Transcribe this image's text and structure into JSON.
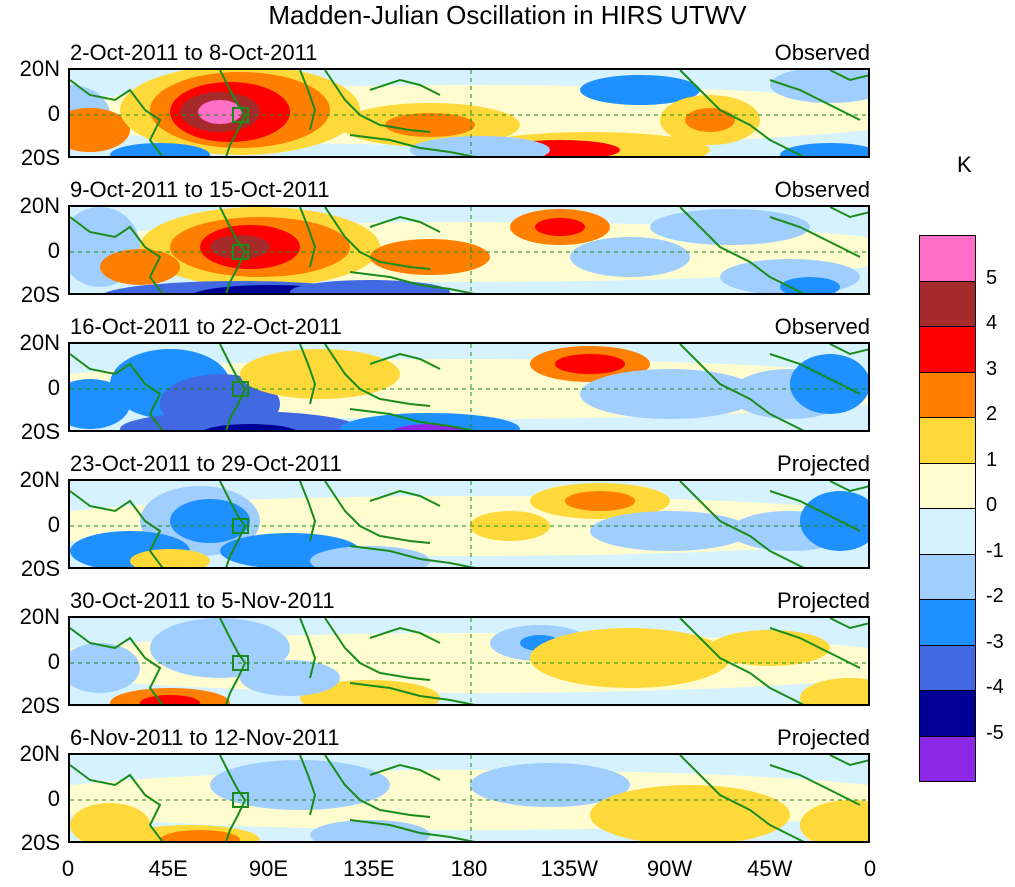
{
  "title": "Madden-Julian Oscillation in HIRS UTWV",
  "panels": [
    {
      "date_range": "2-Oct-2011 to 8-Oct-2011",
      "status": "Observed"
    },
    {
      "date_range": "9-Oct-2011 to 15-Oct-2011",
      "status": "Observed"
    },
    {
      "date_range": "16-Oct-2011 to 22-Oct-2011",
      "status": "Observed"
    },
    {
      "date_range": "23-Oct-2011 to 29-Oct-2011",
      "status": "Projected"
    },
    {
      "date_range": "30-Oct-2011 to 5-Nov-2011",
      "status": "Projected"
    },
    {
      "date_range": "6-Nov-2011 to 12-Nov-2011",
      "status": "Projected"
    }
  ],
  "y_ticks": [
    "20N",
    "0",
    "20S"
  ],
  "x_ticks": [
    "0",
    "45E",
    "90E",
    "135E",
    "180",
    "135W",
    "90W",
    "45W",
    "0"
  ],
  "colorbar": {
    "unit": "K",
    "labels": [
      "5",
      "4",
      "3",
      "2",
      "1",
      "0",
      "-1",
      "-2",
      "-3",
      "-4",
      "-5"
    ],
    "colors": [
      "#ff6ec7",
      "#a52a2a",
      "#ff0000",
      "#ff7f00",
      "#ffd93a",
      "#fffcd0",
      "#d6f2ff",
      "#a0ceff",
      "#1e90ff",
      "#4169e1",
      "#000096",
      "#8c28e6"
    ]
  }
}
